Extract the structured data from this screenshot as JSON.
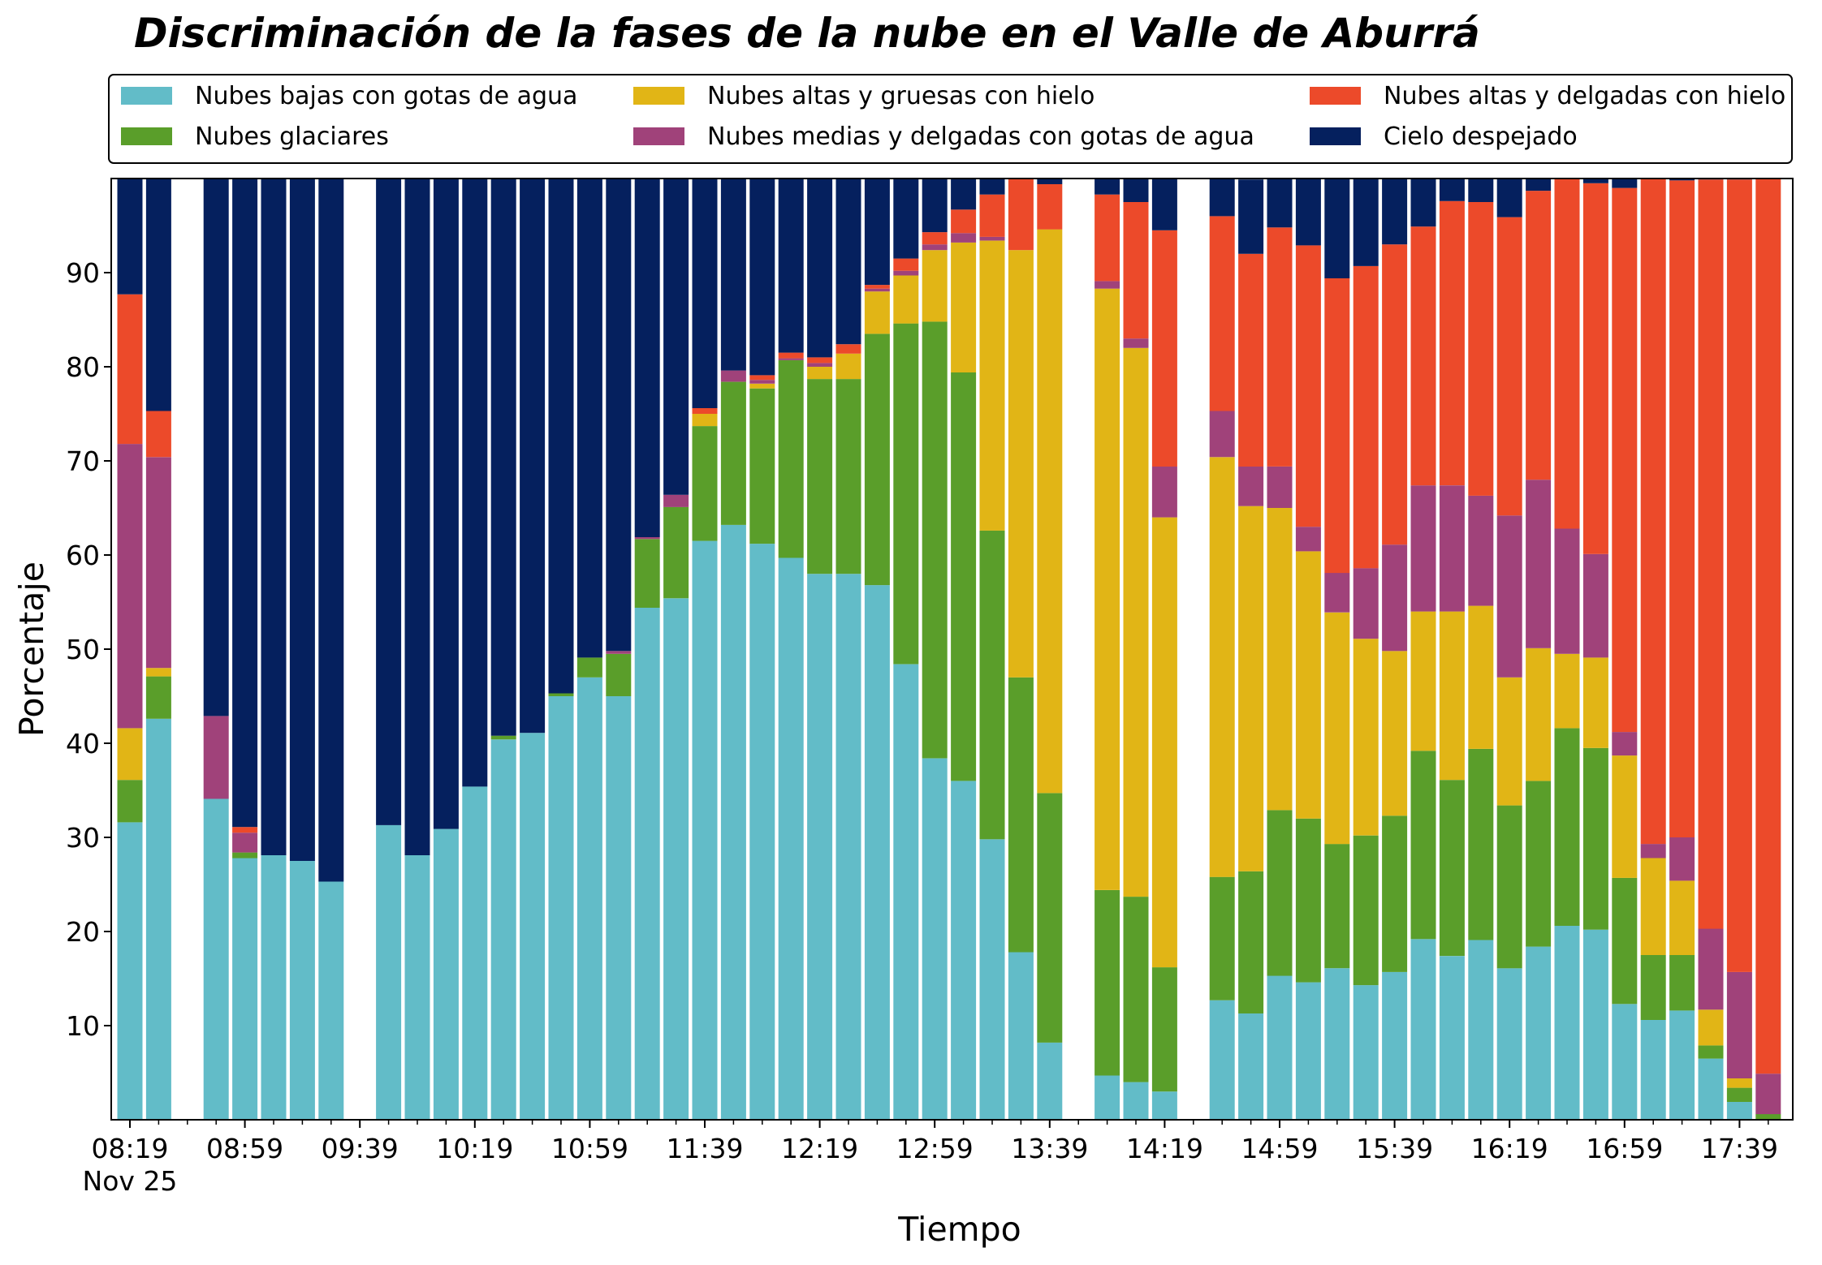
{
  "chart_data": {
    "type": "bar",
    "stacked": true,
    "title": "Discriminación de la fases de la nube en el Valle de Aburrá",
    "xlabel": "Tiempo",
    "ylabel": "Porcentaje",
    "ylim": [
      0,
      100
    ],
    "yticks": [
      10,
      20,
      30,
      40,
      50,
      60,
      70,
      80,
      90
    ],
    "x_start": "08:19",
    "x_step_minutes": 10,
    "x_count": 60,
    "xticks": [
      {
        "label": "08:19",
        "sublabel": "Nov 25",
        "index": 0
      },
      {
        "label": "08:59",
        "index": 4
      },
      {
        "label": "09:39",
        "index": 8
      },
      {
        "label": "10:19",
        "index": 12
      },
      {
        "label": "10:59",
        "index": 16
      },
      {
        "label": "11:39",
        "index": 20
      },
      {
        "label": "12:19",
        "index": 24
      },
      {
        "label": "12:59",
        "index": 28
      },
      {
        "label": "13:39",
        "index": 32
      },
      {
        "label": "14:19",
        "index": 36
      },
      {
        "label": "14:59",
        "index": 40
      },
      {
        "label": "15:39",
        "index": 44
      },
      {
        "label": "16:19",
        "index": 48
      },
      {
        "label": "16:59",
        "index": 52
      },
      {
        "label": "17:39",
        "index": 56
      }
    ],
    "grid": false,
    "legend_position": "top",
    "series": [
      {
        "name": "Nubes bajas con gotas de agua",
        "color": "#62bcc8",
        "values": [
          31.6,
          42.6,
          null,
          34.1,
          27.8,
          28.1,
          27.5,
          25.3,
          null,
          31.3,
          28.1,
          30.9,
          35.4,
          40.4,
          41.1,
          45.0,
          47.0,
          45.0,
          54.4,
          55.4,
          61.5,
          63.2,
          61.2,
          59.7,
          58.0,
          58.0,
          56.8,
          48.4,
          38.4,
          36.0,
          29.8,
          17.8,
          8.2,
          null,
          4.7,
          4.0,
          3.0,
          null,
          12.7,
          11.3,
          15.3,
          14.6,
          16.1,
          14.3,
          15.7,
          19.2,
          17.4,
          19.1,
          16.1,
          18.4,
          20.6,
          20.2,
          12.3,
          10.6,
          11.6,
          6.5,
          1.9,
          0.0,
          null,
          null
        ]
      },
      {
        "name": "Nubes glaciares",
        "color": "#5a9e2a",
        "values": [
          4.5,
          4.5,
          null,
          0.0,
          0.6,
          0.0,
          0.0,
          0.0,
          null,
          0.0,
          0.0,
          0.0,
          0.0,
          0.4,
          0.0,
          0.3,
          2.1,
          4.5,
          7.3,
          9.7,
          12.2,
          15.2,
          16.5,
          21.0,
          20.7,
          20.7,
          26.7,
          36.2,
          46.4,
          43.4,
          32.8,
          29.2,
          26.5,
          null,
          19.7,
          19.7,
          13.2,
          null,
          13.1,
          15.1,
          17.6,
          17.4,
          13.2,
          15.9,
          16.6,
          20.0,
          18.7,
          20.3,
          17.3,
          17.6,
          21.0,
          19.3,
          13.4,
          6.9,
          5.9,
          1.4,
          1.5,
          0.6,
          null,
          null
        ]
      },
      {
        "name": "Nubes altas y gruesas con hielo",
        "color": "#e1b516",
        "values": [
          5.5,
          0.9,
          null,
          0.0,
          0.0,
          0.0,
          0.0,
          0.0,
          null,
          0.0,
          0.0,
          0.0,
          0.0,
          0.0,
          0.0,
          0.0,
          0.0,
          0.0,
          0.0,
          0.0,
          1.3,
          0.0,
          0.5,
          0.0,
          1.3,
          2.7,
          4.5,
          5.1,
          7.6,
          13.8,
          30.8,
          45.4,
          59.9,
          null,
          63.9,
          58.3,
          47.8,
          null,
          44.6,
          38.8,
          32.1,
          28.4,
          24.6,
          20.9,
          17.5,
          14.8,
          17.9,
          15.2,
          13.6,
          14.1,
          7.9,
          9.6,
          13.0,
          10.3,
          7.9,
          3.8,
          1.0,
          0.0,
          null,
          null
        ]
      },
      {
        "name": "Nubes medias y delgadas con gotas de agua",
        "color": "#a0427a",
        "values": [
          30.2,
          22.4,
          null,
          8.8,
          2.1,
          0.0,
          0.0,
          0.0,
          null,
          0.0,
          0.0,
          0.0,
          0.0,
          0.0,
          0.0,
          0.0,
          0.0,
          0.3,
          0.2,
          1.3,
          0.0,
          1.2,
          0.4,
          0.2,
          0.4,
          0.0,
          0.3,
          0.5,
          0.6,
          1.0,
          0.4,
          0.0,
          0.0,
          null,
          0.8,
          1.0,
          5.4,
          null,
          4.9,
          4.2,
          4.4,
          2.6,
          4.2,
          7.5,
          11.3,
          13.4,
          13.4,
          11.7,
          17.2,
          17.9,
          13.3,
          11.0,
          2.5,
          1.5,
          4.6,
          8.6,
          11.3,
          4.3,
          null,
          null
        ]
      },
      {
        "name": "Nubes altas y delgadas con hielo",
        "color": "#ec4a2a",
        "values": [
          15.9,
          4.9,
          null,
          0.0,
          0.6,
          0.0,
          0.0,
          0.0,
          null,
          0.0,
          0.0,
          0.0,
          0.0,
          0.0,
          0.0,
          0.0,
          0.0,
          0.0,
          0.0,
          0.0,
          0.6,
          0.0,
          0.5,
          0.6,
          0.6,
          1.0,
          0.4,
          1.3,
          1.3,
          2.5,
          4.5,
          7.6,
          4.8,
          null,
          9.2,
          14.5,
          25.1,
          null,
          20.7,
          22.6,
          25.4,
          29.9,
          31.3,
          32.1,
          31.9,
          27.5,
          30.2,
          31.2,
          31.7,
          30.7,
          37.2,
          39.4,
          57.8,
          70.7,
          69.8,
          79.6,
          84.2,
          95.1,
          null,
          null
        ]
      },
      {
        "name": "Cielo despejado",
        "color": "#05205e",
        "values": [
          12.3,
          24.7,
          null,
          57.1,
          68.9,
          71.9,
          72.5,
          74.7,
          null,
          68.7,
          71.9,
          69.1,
          64.6,
          59.2,
          58.9,
          54.7,
          50.9,
          50.2,
          38.1,
          33.6,
          24.4,
          20.4,
          20.9,
          18.5,
          19.0,
          17.6,
          11.3,
          8.5,
          5.7,
          3.3,
          1.7,
          0.0,
          0.6,
          null,
          1.7,
          2.5,
          5.5,
          null,
          4.0,
          7.9,
          5.2,
          7.1,
          10.6,
          9.3,
          7.0,
          5.1,
          2.4,
          2.5,
          4.1,
          1.3,
          0.0,
          0.5,
          1.0,
          0.0,
          0.2,
          0.1,
          0.1,
          0.0,
          null,
          null
        ]
      }
    ]
  }
}
